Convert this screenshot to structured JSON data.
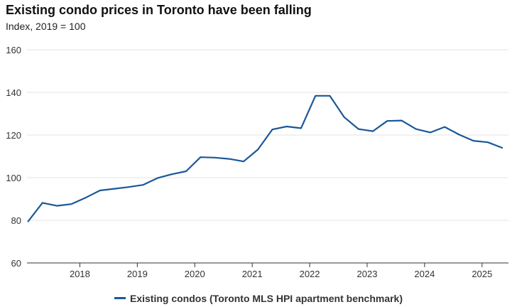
{
  "chart_data": {
    "type": "line",
    "title": "Existing condo prices in Toronto have been falling",
    "subtitle": "Index, 2019 = 100",
    "xlabel": "",
    "ylabel": "",
    "ylim": [
      60,
      160
    ],
    "yticks": [
      "60",
      "80",
      "100",
      "120",
      "140",
      "160"
    ],
    "xticks": [
      "2018",
      "2019",
      "2020",
      "2021",
      "2022",
      "2023",
      "2024",
      "2025"
    ],
    "xlim": [
      2017.08,
      2025.46
    ],
    "grid": true,
    "legend_position": "bottom-center",
    "series": [
      {
        "name": "Existing condos (Toronto MLS HPI apartment benchmark)",
        "color": "#1a5799",
        "x": [
          2017.1,
          2017.35,
          2017.6,
          2017.85,
          2018.1,
          2018.35,
          2018.6,
          2018.85,
          2019.1,
          2019.35,
          2019.6,
          2019.85,
          2020.1,
          2020.35,
          2020.6,
          2020.85,
          2021.1,
          2021.35,
          2021.6,
          2021.85,
          2022.1,
          2022.35,
          2022.6,
          2022.85,
          2023.1,
          2023.35,
          2023.6,
          2023.85,
          2024.1,
          2024.35,
          2024.6,
          2024.85,
          2025.1,
          2025.35
        ],
        "y": [
          79.5,
          88.2,
          86.8,
          87.6,
          90.6,
          94.0,
          94.8,
          95.6,
          96.6,
          99.8,
          101.6,
          103.0,
          109.6,
          109.4,
          108.8,
          107.6,
          113.2,
          122.6,
          124.0,
          123.2,
          138.4,
          138.4,
          128.4,
          122.8,
          121.8,
          126.6,
          126.8,
          122.8,
          121.2,
          123.8,
          120.2,
          117.3,
          116.6,
          114.0
        ]
      }
    ]
  }
}
